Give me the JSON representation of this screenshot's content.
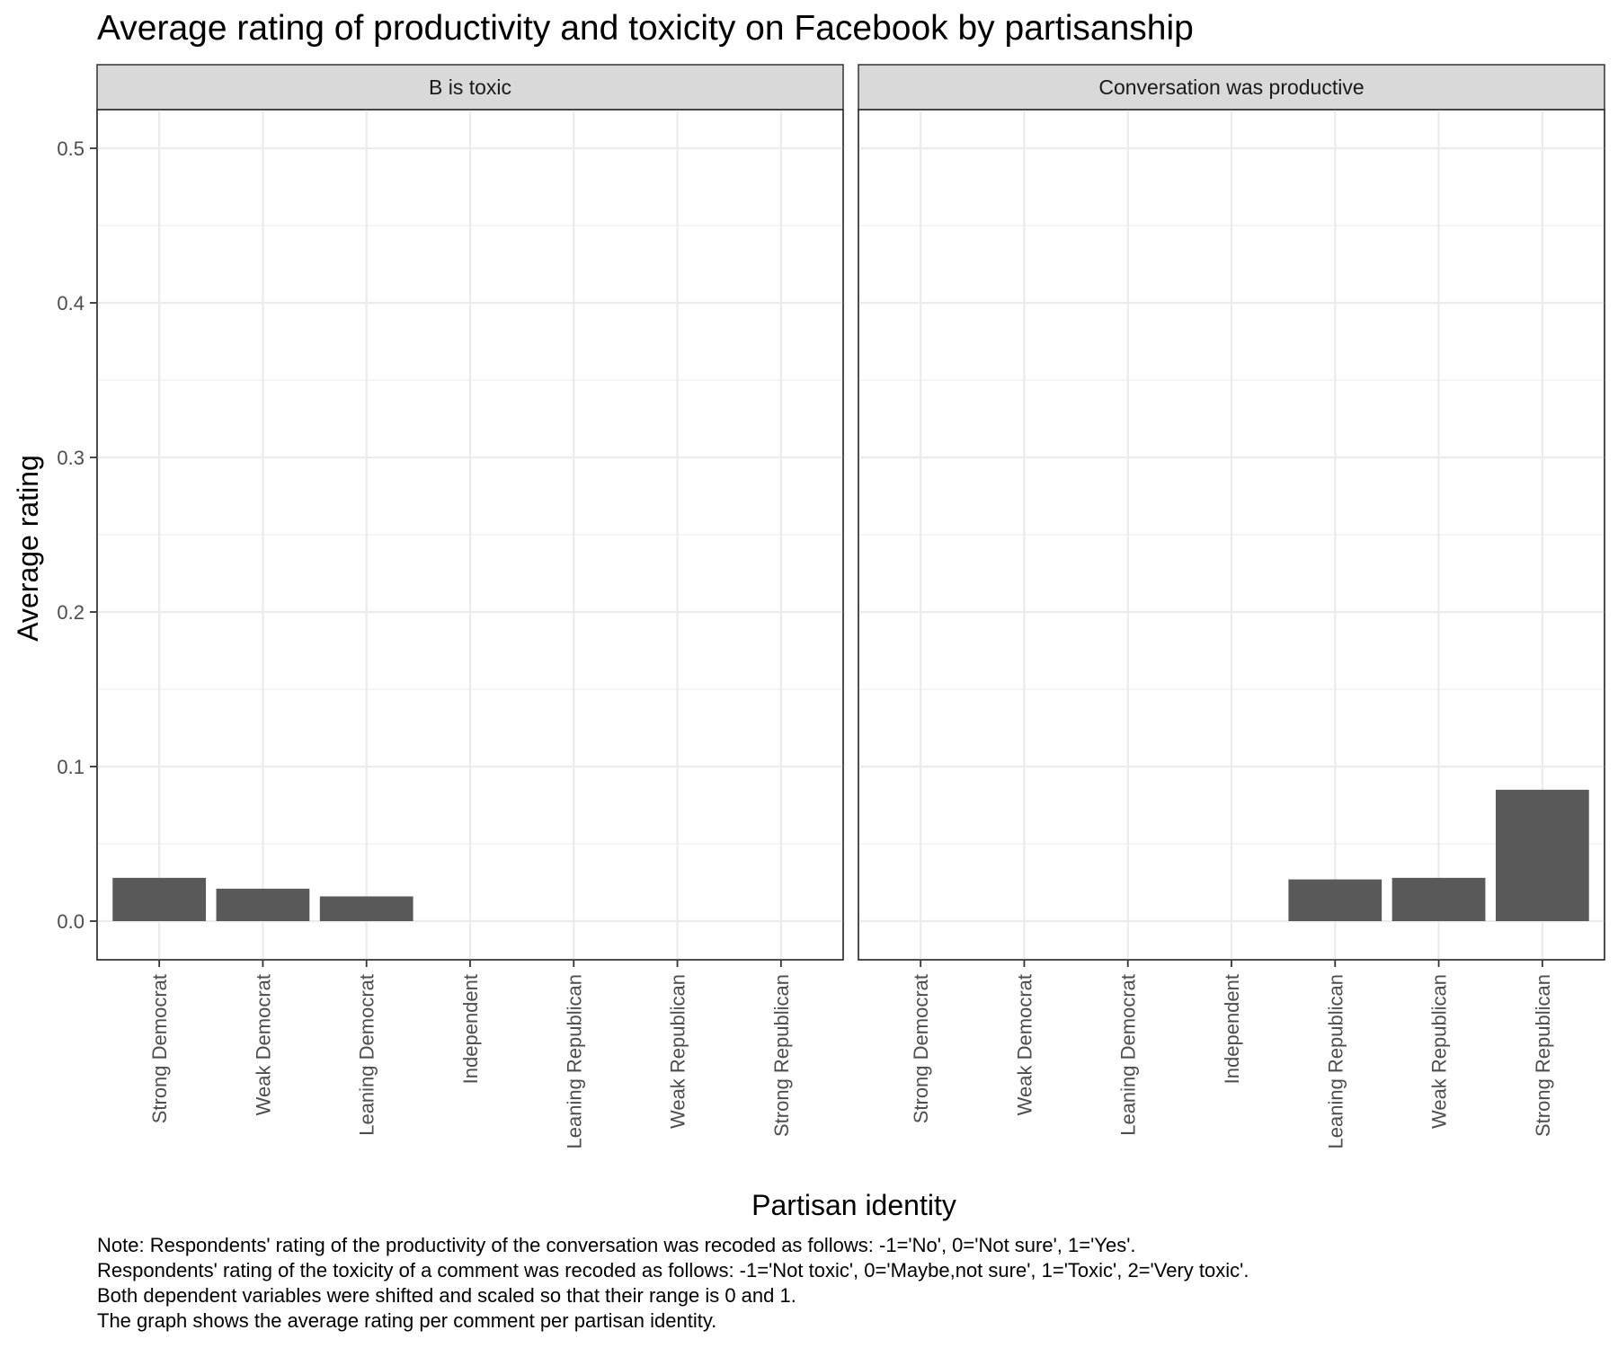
{
  "chart_data": {
    "type": "bar",
    "title": "Average rating of productivity and toxicity on Facebook by partisanship",
    "xlabel": "Partisan identity",
    "ylabel": "Average rating",
    "ylim": [
      -0.025,
      0.525
    ],
    "y_ticks": [
      "0.0",
      "0.1",
      "0.2",
      "0.3",
      "0.4",
      "0.5"
    ],
    "grid": true,
    "categories": [
      "Strong Democrat",
      "Weak Democrat",
      "Leaning Democrat",
      "Independent",
      "Leaning Republican",
      "Weak Republican",
      "Strong Republican"
    ],
    "panels": [
      {
        "name": "B is toxic",
        "values": [
          0.028,
          0.021,
          0.016,
          0.0,
          0.0,
          0.0,
          0.0
        ]
      },
      {
        "name": "Conversation was productive",
        "values": [
          0.0,
          0.0,
          0.0,
          0.0,
          0.027,
          0.028,
          0.085
        ]
      }
    ],
    "bar_color": "#595959",
    "note": [
      "Note: Respondents' rating of the productivity of the conversation was recoded as follows: -1='No', 0='Not sure', 1='Yes'.",
      "Respondents' rating of the toxicity of a comment was recoded as follows: -1='Not toxic', 0='Maybe,not sure', 1='Toxic', 2='Very toxic'.",
      "Both dependent variables were shifted and scaled so that their range is 0 and 1.",
      "The graph shows the average rating per comment per partisan identity."
    ]
  }
}
